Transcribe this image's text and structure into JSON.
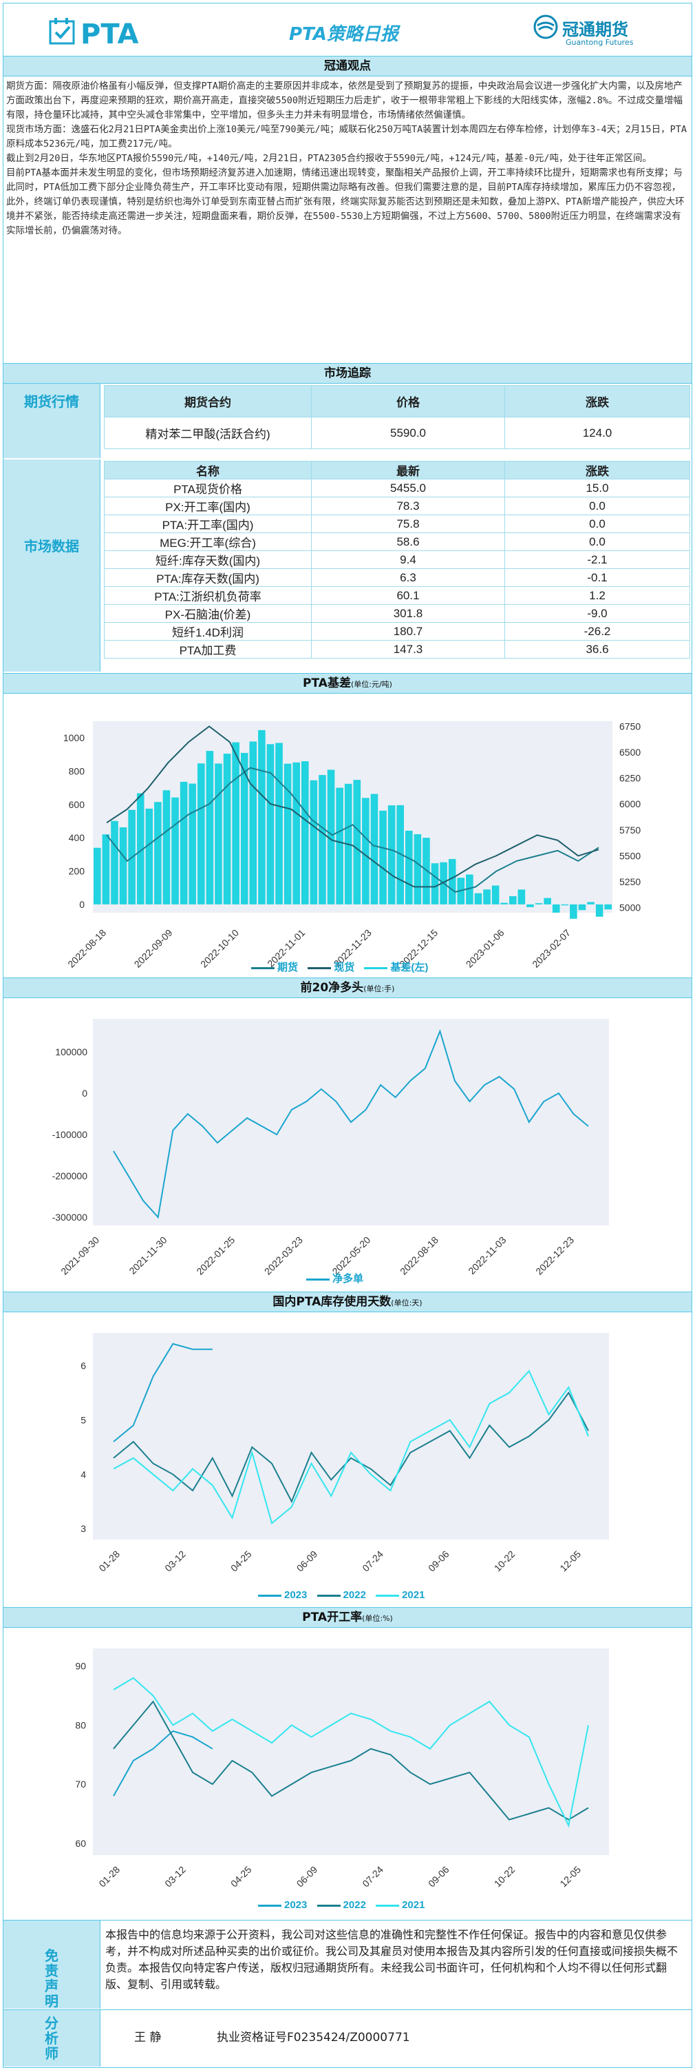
{
  "header": {
    "logo_text": "PTA",
    "title": "PTA策略日报",
    "brand_cn": "冠通期货",
    "brand_en": "Guantong Futures"
  },
  "sections": {
    "viewpoint": "冠通观点",
    "tracking": "市场追踪",
    "basis": "PTA基差",
    "basis_unit": "(单位:元/吨)",
    "net": "前20净多头",
    "net_unit": "(单位:手)",
    "inventory": "国内PTA库存使用天数",
    "inventory_unit": "(单位:天)",
    "rate": "PTA开工率",
    "rate_unit": "(单位:%)"
  },
  "viewpoint_text": "期货方面：隔夜原油价格虽有小幅反弹，但支撑PTA期价高走的主要原因并非成本，依然是受到了预期复苏的提振，中央政治局会议进一步强化扩大内需，以及房地产方面政策出台下，再度迎来预期的狂欢，期价高开高走，直接突破5500附近短期压力后走扩，收于一根带非常粗上下影线的大阳线实体，涨幅2.8%。不过成交量增幅有限，持仓量环比减持，其中空头减仓非常集中，空平增加，但多头主力并未有明显增仓，市场情绪依然偏谨慎。\n现货市场方面：逸盛石化2月21日PTA美金卖出价上涨10美元/吨至790美元/吨；威联石化250万吨TA装置计划本周四左右停车检修，计划停车3-4天；2月15日，PTA原料成本5236元/吨，加工费217元/吨。\n截止到2月20日，华东地区PTA报价5590元/吨，+140元/吨，2月21日，PTA2305合约报收于5590元/吨，+124元/吨，基差-0元/吨，处于往年正常区间。\n目前PTA基本面并未发生明显的变化，但市场预期经济复苏进入加速期，情绪迅速出现转变，聚酯相关产品报价上调，开工率持续环比提升，短期需求也有所支撑；与此同时，PTA低加工费下部分企业降负荷生产，开工率环比变动有限，短期供需边际略有改善。但我们需要注意的是，目前PTA库存持续增加，累库压力仍不容忽视，此外，终端订单仍表现谨慎，特别是纺织也海外订单受到东南亚替占而扩张有限，终端实际复苏能否达到预期还是未知数，叠加上游PX、PTA新增产能投产，供应大环境并不紧张，能否持续走高还需进一步关注，短期盘面来看，期价反弹，在5500-5530上方短期偏强，不过上方5600、5700、5800附近压力明显，在终端需求没有实际增长前，仍偏震荡对待。",
  "futures": {
    "side_label": "期货行情",
    "headers": [
      "期货合约",
      "价格",
      "涨跌"
    ],
    "rows": [
      [
        "精对苯二甲酸(活跃合约)",
        "5590.0",
        "124.0"
      ]
    ]
  },
  "market": {
    "side_label": "市场数据",
    "headers": [
      "名称",
      "最新",
      "涨跌"
    ],
    "rows": [
      [
        "PTA现货价格",
        "5455.0",
        "15.0"
      ],
      [
        "PX:开工率(国内)",
        "78.3",
        "0.0"
      ],
      [
        "PTA:开工率(国内)",
        "75.8",
        "0.0"
      ],
      [
        "MEG:开工率(综合)",
        "58.6",
        "0.0"
      ],
      [
        "短纤:库存天数(国内)",
        "9.4",
        "-2.1"
      ],
      [
        "PTA:库存天数(国内)",
        "6.3",
        "-0.1"
      ],
      [
        "PTA:江浙织机负荷率",
        "60.1",
        "1.2"
      ],
      [
        "PX-石脑油(价差)",
        "301.8",
        "-9.0"
      ],
      [
        "短纤1.4D利润",
        "180.7",
        "-26.2"
      ],
      [
        "PTA加工费",
        "147.3",
        "36.6"
      ]
    ]
  },
  "chart_data": [
    {
      "type": "line",
      "title": "PTA基差",
      "x_ticks": [
        "2022-08-18",
        "2022-09-09",
        "2022-10-10",
        "2022-11-01",
        "2022-11-23",
        "2022-12-15",
        "2023-01-06",
        "2023-02-07"
      ],
      "y_left_ticks": [
        0,
        200,
        400,
        600,
        800,
        1000
      ],
      "y_right_ticks": [
        5000,
        5250,
        5500,
        5750,
        6000,
        6250,
        6500,
        6750
      ],
      "ylim_left": [
        -50,
        1100
      ],
      "ylim_right": [
        4950,
        6800
      ],
      "series": [
        {
          "name": "期货",
          "axis": "right",
          "color": "#1a7f8e",
          "values": [
            5700,
            5450,
            5600,
            5750,
            5900,
            6000,
            6200,
            6350,
            6300,
            6100,
            5850,
            5700,
            5800,
            5600,
            5550,
            5450,
            5300,
            5150,
            5200,
            5350,
            5450,
            5500,
            5550,
            5450,
            5580
          ]
        },
        {
          "name": "现货",
          "axis": "right",
          "color": "#1c5e6b",
          "values": [
            5820,
            5950,
            6150,
            6400,
            6600,
            6750,
            6600,
            6200,
            6000,
            5950,
            5800,
            5650,
            5600,
            5450,
            5300,
            5200,
            5200,
            5300,
            5420,
            5500,
            5600,
            5700,
            5650,
            5500,
            5560
          ]
        },
        {
          "name": "基差(左)",
          "axis": "left",
          "color": "#22d3e0",
          "type": "bar",
          "values": [
            400,
            480,
            620,
            600,
            700,
            880,
            900,
            950,
            1000,
            900,
            800,
            760,
            700,
            640,
            600,
            430,
            260,
            190,
            120,
            60,
            40,
            -20,
            -30,
            -20,
            -30
          ]
        }
      ]
    },
    {
      "type": "line",
      "title": "前20净多头",
      "x_ticks": [
        "2021-09-30",
        "2021-11-30",
        "2022-01-25",
        "2022-03-23",
        "2022-05-20",
        "2022-08-18",
        "2022-11-03",
        "2022-12-23"
      ],
      "y_ticks": [
        100000,
        0,
        -100000,
        -200000,
        -300000
      ],
      "ylim": [
        -320000,
        180000
      ],
      "series": [
        {
          "name": "净多单",
          "color": "#1aa5cf",
          "values": [
            -140000,
            -200000,
            -260000,
            -300000,
            -90000,
            -50000,
            -80000,
            -120000,
            -90000,
            -60000,
            -80000,
            -100000,
            -40000,
            -20000,
            10000,
            -20000,
            -70000,
            -40000,
            20000,
            -10000,
            30000,
            60000,
            150000,
            30000,
            -20000,
            20000,
            40000,
            10000,
            -70000,
            -20000,
            0,
            -50000,
            -80000
          ]
        }
      ]
    },
    {
      "type": "line",
      "title": "国内PTA库存使用天数",
      "x_ticks": [
        "01-28",
        "03-12",
        "04-25",
        "06-09",
        "07-24",
        "09-06",
        "10-22",
        "12-05"
      ],
      "y_ticks": [
        3,
        4,
        5,
        6
      ],
      "ylim": [
        2.8,
        6.6
      ],
      "legend": [
        "2023",
        "2022",
        "2021"
      ],
      "series": [
        {
          "name": "2023",
          "color": "#1aa5cf",
          "values": [
            4.6,
            4.9,
            5.8,
            6.4,
            6.3,
            6.3
          ]
        },
        {
          "name": "2022",
          "color": "#1a7f8e",
          "values": [
            4.3,
            4.6,
            4.2,
            4.0,
            3.7,
            4.3,
            3.6,
            4.5,
            4.2,
            3.5,
            4.4,
            3.9,
            4.3,
            4.1,
            3.8,
            4.4,
            4.6,
            4.8,
            4.3,
            4.9,
            4.5,
            4.7,
            5.0,
            5.5,
            4.8
          ]
        },
        {
          "name": "2021",
          "color": "#33e6ef",
          "values": [
            4.1,
            4.3,
            4.0,
            3.7,
            4.1,
            3.8,
            3.2,
            4.4,
            3.1,
            3.4,
            4.2,
            3.6,
            4.4,
            4.0,
            3.7,
            4.6,
            4.8,
            5.0,
            4.5,
            5.3,
            5.5,
            5.9,
            5.1,
            5.6,
            4.7
          ]
        }
      ]
    },
    {
      "type": "line",
      "title": "PTA开工率",
      "x_ticks": [
        "01-28",
        "03-12",
        "04-25",
        "06-09",
        "07-24",
        "09-06",
        "10-22",
        "12-05"
      ],
      "y_ticks": [
        60,
        70,
        80,
        90
      ],
      "ylim": [
        58,
        93
      ],
      "legend": [
        "2023",
        "2022",
        "2021"
      ],
      "series": [
        {
          "name": "2023",
          "color": "#1aa5cf",
          "values": [
            68,
            74,
            76,
            79,
            78,
            76
          ]
        },
        {
          "name": "2022",
          "color": "#1a7f8e",
          "values": [
            76,
            80,
            84,
            78,
            72,
            70,
            74,
            72,
            68,
            70,
            72,
            73,
            74,
            76,
            75,
            72,
            70,
            71,
            72,
            68,
            64,
            65,
            66,
            64,
            66
          ]
        },
        {
          "name": "2021",
          "color": "#33e6ef",
          "values": [
            86,
            88,
            85,
            80,
            82,
            79,
            81,
            79,
            77,
            80,
            78,
            80,
            82,
            81,
            79,
            78,
            76,
            80,
            82,
            84,
            80,
            78,
            70,
            63,
            80
          ]
        }
      ]
    }
  ],
  "disclaimer": {
    "label": "免责声明",
    "text": "本报告中的信息均来源于公开资料，我公司对这些信息的准确性和完整性不作任何保证。报告中的内容和意见仅供参考，并不构成对所述品种买卖的出价或征价。我公司及其雇员对使用本报告及其内容所引发的任何直接或间接损失概不负责。本报告仅向特定客户传送，版权归冠通期货所有。未经我公司书面许可，任何机构和个人均不得以任何形式翻版、复制、引用或转载。"
  },
  "analyst": {
    "label": "分析师",
    "name": "王 静",
    "license": "执业资格证号F0235424/Z0000771"
  }
}
